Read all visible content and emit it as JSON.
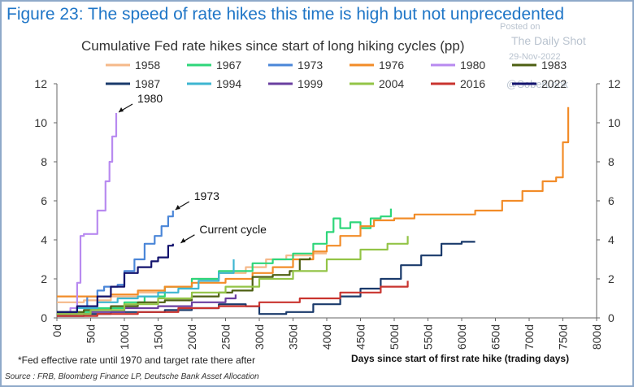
{
  "figure_title": "Figure 23: The speed of rate hikes this time is high but not unprecedented",
  "footnote": "*Fed effective rate until 1970 and target rate there after",
  "source": "Source : FRB, Bloomberg Finance LP, Deutsche Bank Asset Allocation",
  "watermark": {
    "line1": "Posted on",
    "line2": "The Daily Shot",
    "line3": "29-Nov-2022",
    "line4": "@SoberLook"
  },
  "chart_data": {
    "type": "line",
    "title": "Cumulative Fed rate hikes since start of long hiking cycles (pp)",
    "xlabel": "Days since start of first rate hike (trading days)",
    "ylabel": "",
    "xlim": [
      0,
      800
    ],
    "ylim": [
      0,
      12
    ],
    "x_ticks": [
      "0d",
      "50d",
      "100d",
      "150d",
      "200d",
      "250d",
      "300d",
      "350d",
      "400d",
      "450d",
      "500d",
      "550d",
      "600d",
      "650d",
      "700d",
      "750d",
      "800d"
    ],
    "y_ticks": [
      "0",
      "2",
      "4",
      "6",
      "8",
      "10",
      "12"
    ],
    "annotations": [
      {
        "text": "1980",
        "x": 88,
        "y": 10.5
      },
      {
        "text": "1973",
        "x": 172,
        "y": 5.5
      },
      {
        "text": "Current cycle",
        "x": 180,
        "y": 3.8
      }
    ],
    "series": [
      {
        "name": "1958",
        "color": "#f5b98a",
        "points": [
          [
            0,
            0.8
          ],
          [
            20,
            0.8
          ],
          [
            40,
            0.9
          ],
          [
            80,
            1.1
          ],
          [
            120,
            1.3
          ],
          [
            160,
            1.6
          ],
          [
            200,
            2.0
          ],
          [
            240,
            2.3
          ],
          [
            280,
            2.6
          ],
          [
            310,
            3.0
          ],
          [
            340,
            3.2
          ],
          [
            380,
            3.3
          ],
          [
            400,
            3.3
          ]
        ]
      },
      {
        "name": "1967",
        "color": "#2ed67a",
        "points": [
          [
            0,
            0.3
          ],
          [
            50,
            0.5
          ],
          [
            100,
            0.8
          ],
          [
            130,
            1.1
          ],
          [
            160,
            1.6
          ],
          [
            200,
            2.0
          ],
          [
            240,
            2.4
          ],
          [
            290,
            2.8
          ],
          [
            320,
            3.0
          ],
          [
            350,
            3.3
          ],
          [
            380,
            3.8
          ],
          [
            400,
            4.4
          ],
          [
            410,
            5.1
          ],
          [
            420,
            4.6
          ],
          [
            435,
            4.9
          ],
          [
            450,
            4.6
          ],
          [
            465,
            5.1
          ],
          [
            480,
            5.2
          ],
          [
            495,
            5.6
          ]
        ]
      },
      {
        "name": "1973",
        "color": "#4a86d8",
        "points": [
          [
            0,
            0.2
          ],
          [
            15,
            0.3
          ],
          [
            30,
            0.6
          ],
          [
            45,
            1.1
          ],
          [
            60,
            1.4
          ],
          [
            70,
            1.6
          ],
          [
            90,
            1.7
          ],
          [
            100,
            2.4
          ],
          [
            115,
            3.0
          ],
          [
            130,
            3.8
          ],
          [
            145,
            4.2
          ],
          [
            155,
            4.7
          ],
          [
            165,
            5.2
          ],
          [
            172,
            5.5
          ]
        ]
      },
      {
        "name": "1976",
        "color": "#f28c28",
        "points": [
          [
            0,
            1.1
          ],
          [
            40,
            1.1
          ],
          [
            80,
            1.2
          ],
          [
            120,
            1.4
          ],
          [
            160,
            1.6
          ],
          [
            200,
            1.8
          ],
          [
            250,
            2.0
          ],
          [
            290,
            2.3
          ],
          [
            320,
            2.6
          ],
          [
            350,
            3.0
          ],
          [
            380,
            3.4
          ],
          [
            400,
            3.7
          ],
          [
            420,
            4.2
          ],
          [
            450,
            4.7
          ],
          [
            470,
            5.0
          ],
          [
            500,
            5.1
          ],
          [
            530,
            5.3
          ],
          [
            580,
            5.3
          ],
          [
            620,
            5.5
          ],
          [
            660,
            6.0
          ],
          [
            690,
            6.5
          ],
          [
            720,
            7.0
          ],
          [
            740,
            7.2
          ],
          [
            750,
            9.0
          ],
          [
            758,
            10.8
          ]
        ]
      },
      {
        "name": "1980",
        "color": "#b88af0",
        "points": [
          [
            0,
            0.2
          ],
          [
            20,
            0.5
          ],
          [
            30,
            1.8
          ],
          [
            35,
            4.2
          ],
          [
            40,
            4.3
          ],
          [
            55,
            4.3
          ],
          [
            60,
            5.5
          ],
          [
            70,
            5.5
          ],
          [
            72,
            7.0
          ],
          [
            78,
            8.0
          ],
          [
            82,
            9.3
          ],
          [
            88,
            10.5
          ]
        ]
      },
      {
        "name": "1983",
        "color": "#4d5f12",
        "points": [
          [
            0,
            0.3
          ],
          [
            40,
            0.4
          ],
          [
            80,
            0.6
          ],
          [
            120,
            0.8
          ],
          [
            160,
            0.9
          ],
          [
            200,
            1.1
          ],
          [
            240,
            1.3
          ],
          [
            260,
            1.4
          ],
          [
            290,
            2.1
          ],
          [
            320,
            2.2
          ],
          [
            345,
            2.4
          ],
          [
            360,
            3.0
          ],
          [
            375,
            3.1
          ]
        ]
      },
      {
        "name": "1987",
        "color": "#1a3a6b",
        "points": [
          [
            0,
            0.1
          ],
          [
            40,
            0.2
          ],
          [
            80,
            0.3
          ],
          [
            120,
            0.3
          ],
          [
            160,
            0.4
          ],
          [
            200,
            0.5
          ],
          [
            240,
            0.7
          ],
          [
            280,
            0.6
          ],
          [
            300,
            0.2
          ],
          [
            340,
            0.3
          ],
          [
            380,
            0.7
          ],
          [
            420,
            1.1
          ],
          [
            450,
            1.5
          ],
          [
            480,
            2.0
          ],
          [
            510,
            2.7
          ],
          [
            540,
            3.2
          ],
          [
            570,
            3.8
          ],
          [
            600,
            3.9
          ],
          [
            620,
            3.9
          ]
        ]
      },
      {
        "name": "1994",
        "color": "#3eb6d1",
        "points": [
          [
            0,
            0.2
          ],
          [
            30,
            0.5
          ],
          [
            60,
            0.8
          ],
          [
            90,
            1.0
          ],
          [
            120,
            1.1
          ],
          [
            150,
            1.3
          ],
          [
            180,
            1.5
          ],
          [
            210,
            1.9
          ],
          [
            240,
            2.3
          ],
          [
            262,
            3.0
          ]
        ]
      },
      {
        "name": "1999",
        "color": "#6a3fa0",
        "points": [
          [
            0,
            0.2
          ],
          [
            50,
            0.3
          ],
          [
            100,
            0.5
          ],
          [
            150,
            0.6
          ],
          [
            200,
            0.8
          ],
          [
            250,
            1.0
          ],
          [
            265,
            1.2
          ]
        ]
      },
      {
        "name": "2004",
        "color": "#93c447",
        "points": [
          [
            0,
            0.2
          ],
          [
            50,
            0.4
          ],
          [
            100,
            0.7
          ],
          [
            150,
            1.0
          ],
          [
            200,
            1.3
          ],
          [
            250,
            1.6
          ],
          [
            300,
            2.0
          ],
          [
            350,
            2.4
          ],
          [
            400,
            3.0
          ],
          [
            450,
            3.5
          ],
          [
            490,
            3.8
          ],
          [
            520,
            4.2
          ]
        ]
      },
      {
        "name": "2016",
        "color": "#c9342f",
        "points": [
          [
            0,
            0.1
          ],
          [
            60,
            0.2
          ],
          [
            120,
            0.3
          ],
          [
            180,
            0.5
          ],
          [
            240,
            0.6
          ],
          [
            300,
            0.8
          ],
          [
            360,
            1.0
          ],
          [
            420,
            1.3
          ],
          [
            480,
            1.6
          ],
          [
            520,
            1.9
          ]
        ]
      },
      {
        "name": "2022",
        "color": "#13136e",
        "points": [
          [
            0,
            0.3
          ],
          [
            30,
            0.6
          ],
          [
            60,
            1.1
          ],
          [
            80,
            1.6
          ],
          [
            100,
            2.3
          ],
          [
            120,
            2.6
          ],
          [
            140,
            2.9
          ],
          [
            150,
            3.1
          ],
          [
            165,
            3.7
          ],
          [
            172,
            3.8
          ]
        ]
      }
    ]
  }
}
